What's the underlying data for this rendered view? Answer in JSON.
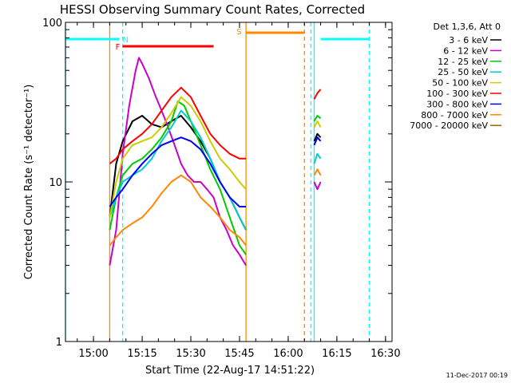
{
  "chart_data": {
    "type": "line",
    "title": "HESSI Observing Summary Count Rates, Corrected",
    "xlabel": "Start Time (22-Aug-17 14:51:22)",
    "ylabel": "Corrected Count Rate (s⁻¹ detector⁻¹)",
    "ylog": true,
    "xlim": [
      "14:51:22",
      "16:32:00"
    ],
    "ylim": [
      1,
      100
    ],
    "x_ticks": [
      "15:00",
      "15:15",
      "15:30",
      "15:45",
      "16:00",
      "16:15",
      "16:30"
    ],
    "y_ticks": [
      1,
      10,
      100
    ],
    "y_tick_labels": [
      "1",
      "10",
      "100"
    ],
    "legend_header": "Det 1,3,6, Att 0",
    "legend_position": "right",
    "series": [
      {
        "name": "3 - 6 keV",
        "color": "#000000",
        "x": [
          "15:05",
          "15:07",
          "15:09",
          "15:12",
          "15:15",
          "15:18",
          "15:21",
          "15:24",
          "15:27",
          "15:30",
          "15:33",
          "15:36",
          "15:39",
          "15:42",
          "15:45",
          "15:47",
          "16:08",
          "16:09",
          "16:10"
        ],
        "y": [
          6,
          13,
          18,
          24,
          26,
          23,
          22,
          24,
          26,
          22,
          18,
          14,
          10,
          8,
          6,
          5,
          18,
          20,
          19
        ]
      },
      {
        "name": "6 - 12 keV",
        "color": "#cc00cc",
        "x": [
          "15:05",
          "15:07",
          "15:09",
          "15:11",
          "15:13",
          "15:14",
          "15:15",
          "15:17",
          "15:19",
          "15:21",
          "15:23",
          "15:25",
          "15:27",
          "15:29",
          "15:31",
          "15:33",
          "15:35",
          "15:37",
          "15:39",
          "15:41",
          "15:43",
          "15:45",
          "15:47",
          "16:08",
          "16:09",
          "16:10"
        ],
        "y": [
          3,
          5,
          15,
          30,
          50,
          60,
          55,
          45,
          35,
          28,
          22,
          17,
          13,
          11,
          10,
          10,
          9,
          8,
          6,
          5,
          4,
          3.5,
          3,
          10,
          9,
          10
        ]
      },
      {
        "name": "12 - 25 keV",
        "color": "#00cc00",
        "x": [
          "15:05",
          "15:07",
          "15:09",
          "15:12",
          "15:15",
          "15:18",
          "15:21",
          "15:24",
          "15:26",
          "15:28",
          "15:30",
          "15:33",
          "15:36",
          "15:39",
          "15:42",
          "15:45",
          "15:47",
          "16:08",
          "16:09",
          "16:10"
        ],
        "y": [
          5,
          8,
          11,
          13,
          14,
          16,
          19,
          24,
          32,
          30,
          24,
          17,
          12,
          9,
          6,
          4,
          3.5,
          24,
          26,
          25
        ]
      },
      {
        "name": "25 - 50 keV",
        "color": "#00cccc",
        "x": [
          "15:05",
          "15:07",
          "15:09",
          "15:12",
          "15:15",
          "15:18",
          "15:21",
          "15:24",
          "15:27",
          "15:30",
          "15:33",
          "15:36",
          "15:39",
          "15:42",
          "15:45",
          "15:47",
          "16:08",
          "16:09",
          "16:10"
        ],
        "y": [
          6,
          8,
          10,
          11,
          12,
          14,
          18,
          22,
          28,
          24,
          19,
          14,
          10,
          8,
          6,
          5,
          13,
          15,
          14
        ]
      },
      {
        "name": "50 - 100 keV",
        "color": "#cccc00",
        "x": [
          "15:05",
          "15:07",
          "15:09",
          "15:12",
          "15:15",
          "15:18",
          "15:21",
          "15:24",
          "15:27",
          "15:30",
          "15:33",
          "15:36",
          "15:39",
          "15:42",
          "15:45",
          "15:47",
          "16:08",
          "16:09",
          "16:10"
        ],
        "y": [
          6,
          10,
          14,
          17,
          18,
          19,
          22,
          27,
          34,
          30,
          24,
          18,
          14,
          12,
          10,
          9,
          22,
          24,
          22
        ]
      },
      {
        "name": "100 - 300 keV",
        "color": "#ff0000",
        "x": [
          "15:05",
          "15:07",
          "15:09",
          "15:12",
          "15:15",
          "15:18",
          "15:21",
          "15:24",
          "15:27",
          "15:30",
          "15:33",
          "15:36",
          "15:39",
          "15:42",
          "15:45",
          "15:47",
          "16:08",
          "16:09",
          "16:10"
        ],
        "y": [
          13,
          14,
          16,
          18,
          20,
          23,
          28,
          34,
          39,
          34,
          26,
          20,
          17,
          15,
          14,
          14,
          33,
          36,
          38
        ]
      },
      {
        "name": "300 - 800 keV",
        "color": "#0000ff",
        "x": [
          "15:05",
          "15:07",
          "15:09",
          "15:12",
          "15:15",
          "15:18",
          "15:21",
          "15:24",
          "15:27",
          "15:30",
          "15:33",
          "15:36",
          "15:39",
          "15:42",
          "15:45",
          "15:47",
          "16:08",
          "16:09",
          "16:10"
        ],
        "y": [
          7,
          8,
          9,
          11,
          13,
          15,
          17,
          18,
          19,
          18,
          16,
          13,
          10,
          8,
          7,
          7,
          17,
          19,
          18
        ]
      },
      {
        "name": "800 - 7000 keV",
        "color": "#ff8800",
        "x": [
          "15:05",
          "15:07",
          "15:09",
          "15:12",
          "15:15",
          "15:18",
          "15:21",
          "15:24",
          "15:27",
          "15:30",
          "15:33",
          "15:36",
          "15:39",
          "15:42",
          "15:45",
          "15:47",
          "16:08",
          "16:09",
          "16:10"
        ],
        "y": [
          4,
          4.5,
          5,
          5.5,
          6,
          7,
          8.5,
          10,
          11,
          10,
          8,
          7,
          6,
          5,
          4.5,
          4,
          11,
          12,
          11
        ]
      },
      {
        "name": "7000 - 20000 keV",
        "color": "#996600",
        "x": [],
        "y": []
      }
    ],
    "flag_bars": [
      {
        "label": "N",
        "color": "#00ffff",
        "segments": [
          [
            "14:51:22",
            "15:08"
          ],
          [
            "16:10",
            "16:25"
          ]
        ]
      },
      {
        "label": "F",
        "color": "#ff0000",
        "segments": [
          [
            "15:09",
            "15:37"
          ]
        ]
      },
      {
        "label": "S",
        "color": "#ff8800",
        "segments": [
          [
            "15:47",
            "16:05"
          ]
        ]
      }
    ],
    "vertical_markers": [
      {
        "time": "14:51:22",
        "color": "#00ffff",
        "style": "solid"
      },
      {
        "time": "15:05",
        "color": "#ff8800",
        "style": "solid"
      },
      {
        "time": "15:09",
        "color": "#00ffff",
        "style": "dashed"
      },
      {
        "time": "15:47",
        "color": "#ff8800",
        "style": "solid"
      },
      {
        "time": "16:05",
        "color": "#ff8800",
        "style": "dashed"
      },
      {
        "time": "16:07",
        "color": "#00ffff",
        "style": "dashed"
      },
      {
        "time": "16:08",
        "color": "#00ffff",
        "style": "solid"
      },
      {
        "time": "16:25",
        "color": "#00ffff",
        "style": "dashed"
      }
    ],
    "timestamp": "11-Dec-2017 00:19"
  }
}
